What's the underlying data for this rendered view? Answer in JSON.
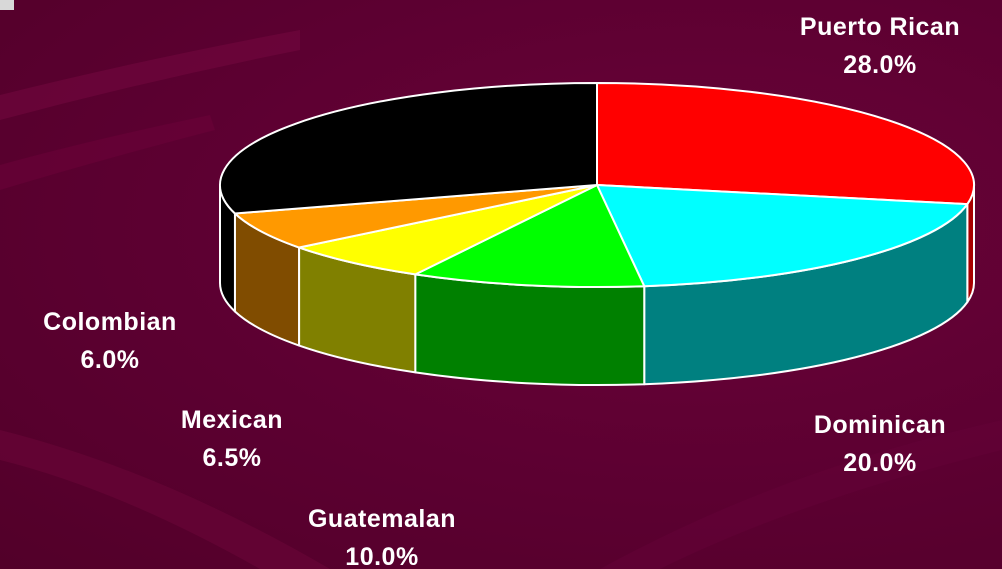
{
  "chart_data": {
    "type": "pie",
    "style": "3d",
    "slices": [
      {
        "label": "Puerto Rican",
        "value_text": "28.0%",
        "value": 28.0,
        "color": "#ff0000",
        "side_color": "#a80000"
      },
      {
        "label": "Dominican",
        "value_text": "20.0%",
        "value": 20.0,
        "color": "#00ffff",
        "side_color": "#008080"
      },
      {
        "label": "Guatemalan",
        "value_text": "10.0%",
        "value": 10.0,
        "color": "#00ff00",
        "side_color": "#008000"
      },
      {
        "label": "Mexican",
        "value_text": "6.5%",
        "value": 6.5,
        "color": "#ffff00",
        "side_color": "#808000"
      },
      {
        "label": "Colombian",
        "value_text": "6.0%",
        "value": 6.0,
        "color": "#ff9900",
        "side_color": "#804c00"
      },
      {
        "label": "",
        "value_text": "",
        "value": 29.5,
        "color": "#000000",
        "side_color": "#000000"
      }
    ]
  }
}
